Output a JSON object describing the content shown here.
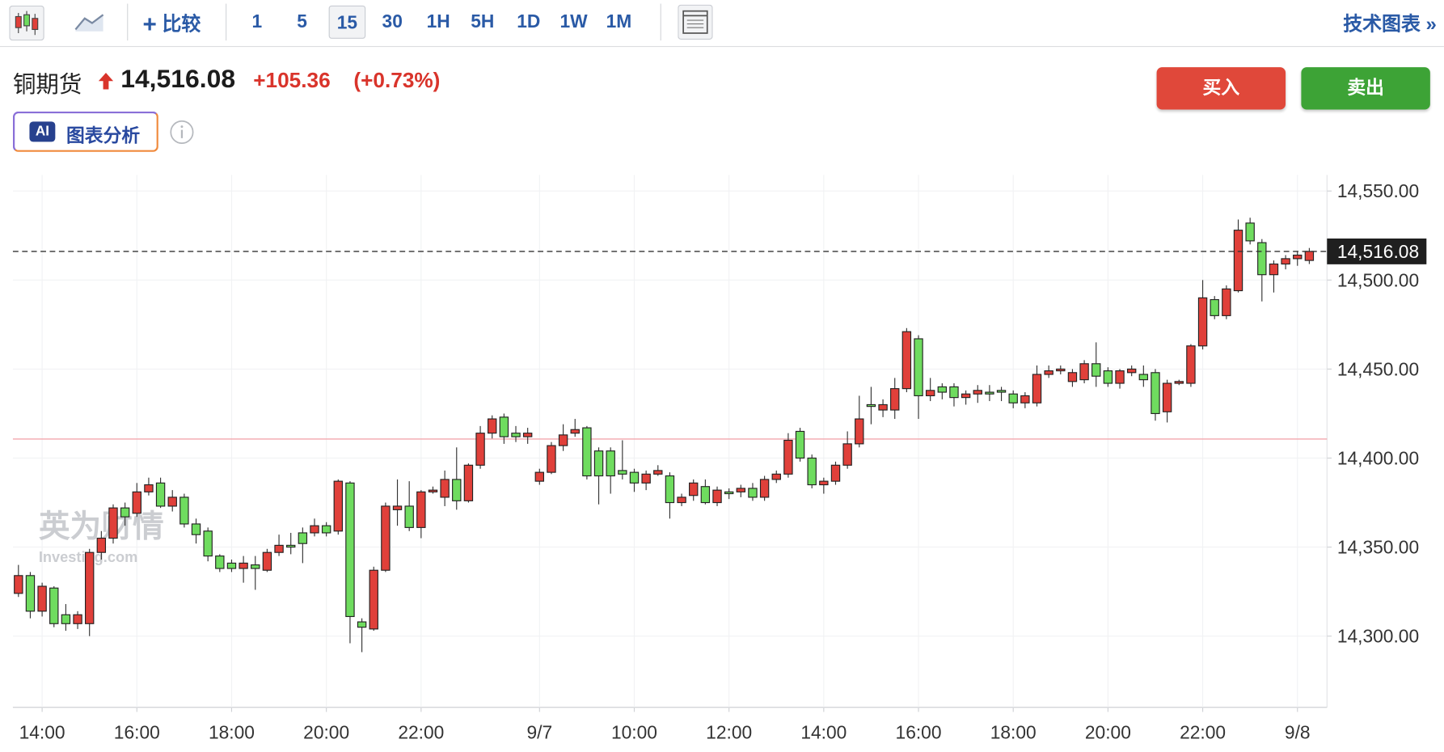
{
  "toolbar": {
    "compare": "比较",
    "intervals": [
      "1",
      "5",
      "15",
      "30",
      "1H",
      "5H",
      "1D",
      "1W",
      "1M"
    ],
    "active_interval": "15",
    "technical": "技术图表 »"
  },
  "header": {
    "name": "铜期货",
    "price": "14,516.08",
    "change": "+105.36",
    "change_pct": "(+0.73%)",
    "buy": "买入",
    "sell": "卖出",
    "ai_badge": "AI",
    "ai_label": "图表分析"
  },
  "watermark": {
    "brand": "英为财情",
    "site": "Investing.com"
  },
  "chart_data": {
    "type": "candlestick",
    "categories": [
      null,
      null,
      "14:00",
      null,
      null,
      null,
      null,
      null,
      null,
      null,
      "16:00",
      null,
      null,
      null,
      null,
      null,
      null,
      null,
      "18:00",
      null,
      null,
      null,
      null,
      null,
      null,
      null,
      "20:00",
      null,
      null,
      null,
      null,
      null,
      null,
      null,
      "22:00",
      null,
      null,
      null,
      null,
      null,
      null,
      null,
      null,
      null,
      "9/7",
      null,
      null,
      null,
      null,
      null,
      null,
      null,
      "10:00",
      null,
      null,
      null,
      null,
      null,
      null,
      null,
      "12:00",
      null,
      null,
      null,
      null,
      null,
      null,
      null,
      "14:00",
      null,
      null,
      null,
      null,
      null,
      null,
      null,
      "16:00",
      null,
      null,
      null,
      null,
      null,
      null,
      null,
      "18:00",
      null,
      null,
      null,
      null,
      null,
      null,
      null,
      "20:00",
      null,
      null,
      null,
      null,
      null,
      null,
      null,
      "22:00",
      null,
      null,
      null,
      null,
      null,
      null,
      null,
      "9/8",
      null
    ],
    "open": [
      14324,
      14334,
      14314,
      14327,
      14312,
      14307,
      14307,
      14347,
      14355,
      14372,
      14369,
      14381,
      14386,
      14373,
      14378,
      14363,
      14359,
      14345,
      14341,
      14338,
      14340,
      14337,
      14347,
      14351,
      14358,
      14358,
      14362,
      14359,
      14386,
      14308,
      14304,
      14337,
      14371,
      14373,
      14361,
      14381,
      14378,
      14388,
      14376,
      14396,
      14414,
      14423,
      14414,
      14412,
      14387,
      14392,
      14407,
      14414,
      14417,
      14404,
      14404,
      14393,
      14392,
      14386,
      14391,
      14390,
      14375,
      14379,
      14384,
      14375,
      14381,
      14381,
      14383,
      14378,
      14388,
      14391,
      14415,
      14400,
      14385,
      14387,
      14396,
      14408,
      14430,
      14427,
      14427,
      14439,
      14467,
      14435,
      14440,
      14440,
      14434,
      14436,
      14437,
      14438,
      14436,
      14431,
      14431,
      14447,
      14449,
      14443,
      14444,
      14453,
      14449,
      14442,
      14448,
      14447,
      14448,
      14426,
      14442,
      14442,
      14463,
      14489,
      14480,
      14494,
      14532,
      14521,
      14503,
      14509,
      14512,
      14511
    ],
    "high": [
      14340,
      14336,
      14330,
      14328,
      14318,
      14314,
      14349,
      14359,
      14374,
      14375,
      14386,
      14389,
      14389,
      14382,
      14380,
      14366,
      14361,
      14346,
      14343,
      14345,
      14345,
      14349,
      14357,
      14358,
      14361,
      14366,
      14364,
      14388,
      14387,
      14310,
      14339,
      14375,
      14388,
      14387,
      14382,
      14384,
      14393,
      14406,
      14397,
      14418,
      14424,
      14425,
      14418,
      14417,
      14394,
      14409,
      14419,
      14422,
      14418,
      14406,
      14406,
      14410,
      14394,
      14393,
      14396,
      14392,
      14380,
      14388,
      14388,
      14384,
      14383,
      14385,
      14386,
      14390,
      14393,
      14414,
      14417,
      14402,
      14389,
      14398,
      14415,
      14435,
      14440,
      14433,
      14445,
      14473,
      14469,
      14445,
      14442,
      14442,
      14438,
      14441,
      14441,
      14440,
      14438,
      14437,
      14452,
      14452,
      14452,
      14450,
      14455,
      14465,
      14451,
      14450,
      14452,
      14452,
      14450,
      14444,
      14444,
      14464,
      14500,
      14491,
      14497,
      14534,
      14535,
      14523,
      14511,
      14514,
      14516,
      14518
    ],
    "low": [
      14322,
      14310,
      14311,
      14305,
      14303,
      14304,
      14300,
      14343,
      14352,
      14362,
      14367,
      14379,
      14372,
      14370,
      14361,
      14352,
      14342,
      14336,
      14336,
      14330,
      14326,
      14336,
      14345,
      14346,
      14341,
      14356,
      14356,
      14357,
      14296,
      14291,
      14303,
      14336,
      14362,
      14359,
      14355,
      14380,
      14373,
      14371,
      14375,
      14394,
      14411,
      14408,
      14409,
      14408,
      14385,
      14391,
      14404,
      14412,
      14388,
      14374,
      14380,
      14388,
      14381,
      14382,
      14390,
      14366,
      14373,
      14376,
      14374,
      14373,
      14377,
      14378,
      14376,
      14376,
      14386,
      14389,
      14398,
      14383,
      14380,
      14385,
      14394,
      14406,
      14419,
      14423,
      14422,
      14437,
      14422,
      14432,
      14433,
      14429,
      14430,
      14431,
      14432,
      14432,
      14428,
      14428,
      14429,
      14445,
      14447,
      14440,
      14442,
      14440,
      14440,
      14439,
      14446,
      14440,
      14421,
      14420,
      14441,
      14440,
      14461,
      14478,
      14478,
      14493,
      14520,
      14488,
      14493,
      14506,
      14508,
      14509
    ],
    "close": [
      14334,
      14314,
      14328,
      14307,
      14307,
      14312,
      14347,
      14355,
      14372,
      14367,
      14381,
      14385,
      14373,
      14378,
      14363,
      14357,
      14345,
      14338,
      14338,
      14341,
      14338,
      14347,
      14351,
      14350,
      14352,
      14362,
      14358,
      14387,
      14311,
      14305,
      14337,
      14373,
      14373,
      14361,
      14381,
      14382,
      14388,
      14376,
      14396,
      14414,
      14422,
      14412,
      14412,
      14414,
      14392,
      14407,
      14413,
      14416,
      14390,
      14390,
      14390,
      14391,
      14386,
      14391,
      14393,
      14375,
      14378,
      14386,
      14375,
      14382,
      14380,
      14383,
      14378,
      14388,
      14391,
      14410,
      14400,
      14385,
      14387,
      14396,
      14408,
      14422,
      14429,
      14430,
      14439,
      14471,
      14435,
      14438,
      14437,
      14434,
      14436,
      14438,
      14436,
      14437,
      14431,
      14435,
      14447,
      14449,
      14450,
      14448,
      14453,
      14446,
      14442,
      14449,
      14450,
      14444,
      14425,
      14442,
      14443,
      14463,
      14490,
      14480,
      14495,
      14528,
      14522,
      14503,
      14509,
      14512,
      14514,
      14516.08
    ],
    "up_color": "#e0403a",
    "down_color": "#6fdc5f",
    "last_price": {
      "value": 14516.08,
      "label": "14,516.08"
    },
    "reference_line": 14410.72,
    "ylim": [
      14260,
      14559
    ],
    "yticks": [
      {
        "value": 14300,
        "label": "14,300.00"
      },
      {
        "value": 14350,
        "label": "14,350.00"
      },
      {
        "value": 14400,
        "label": "14,400.00"
      },
      {
        "value": 14450,
        "label": "14,450.00"
      },
      {
        "value": 14500,
        "label": "14,500.00"
      },
      {
        "value": 14550,
        "label": "14,550.00"
      }
    ],
    "grid": true
  }
}
